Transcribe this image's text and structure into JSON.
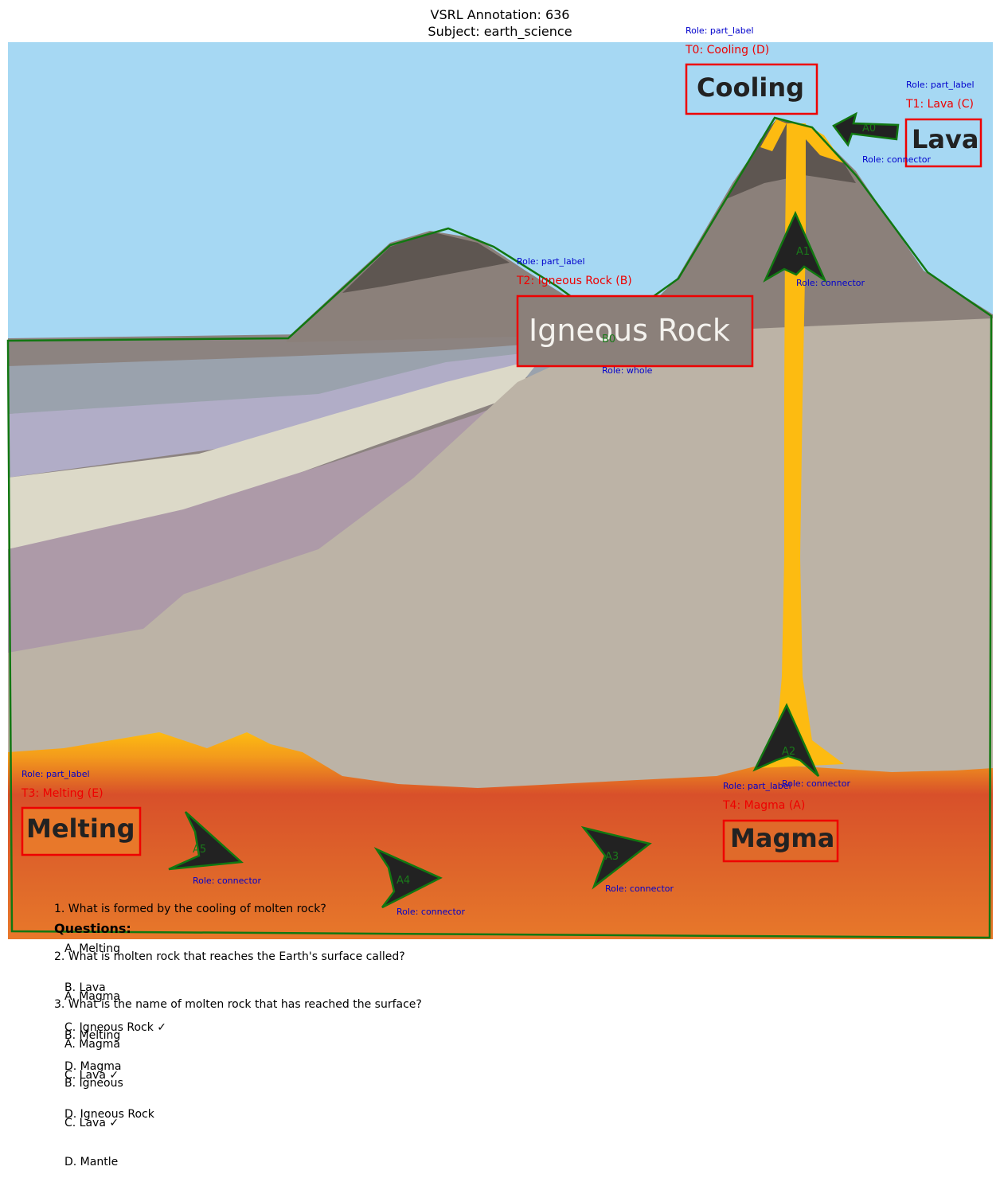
{
  "header": {
    "line1": "VSRL Annotation: 636",
    "line2": "Subject: earth_science"
  },
  "text_boxes": [
    {
      "id": "T0",
      "tag": "T0: Cooling (D)",
      "role": "Role: part_label",
      "text": "Cooling"
    },
    {
      "id": "T1",
      "tag": "T1: Lava (C)",
      "role": "Role: part_label",
      "text": "Lava"
    },
    {
      "id": "T2",
      "tag": "T2: Igneous Rock (B)",
      "role": "Role: part_label",
      "text": "Igneous Rock"
    },
    {
      "id": "T3",
      "tag": "T3: Melting (E)",
      "role": "Role: part_label",
      "text": "Melting"
    },
    {
      "id": "T4",
      "tag": "T4: Magma (A)",
      "role": "Role: part_label",
      "text": "Magma"
    }
  ],
  "arrows": [
    {
      "id": "A0",
      "role": "Role: connector"
    },
    {
      "id": "A1",
      "role": "Role: connector"
    },
    {
      "id": "A2",
      "role": "Role: connector"
    },
    {
      "id": "A3",
      "role": "Role: connector"
    },
    {
      "id": "A4",
      "role": "Role: connector"
    },
    {
      "id": "A5",
      "role": "Role: connector"
    }
  ],
  "blob": {
    "id": "B0",
    "role": "Role: whole"
  },
  "questions_heading": "Questions:",
  "questions": [
    {
      "q": "1. What is formed by the cooling of molten rock?",
      "options": [
        "A. Melting",
        "B. Lava",
        "C. Igneous Rock ✓",
        "D. Magma"
      ]
    },
    {
      "q": "2. What is molten rock that reaches the Earth's surface called?",
      "options": [
        "A. Magma",
        "B. Melting",
        "C. Lava ✓",
        "D. Igneous Rock"
      ]
    },
    {
      "q": "3. What is the name of molten rock that has reached the surface?",
      "options": [
        "A. Magma",
        "B. Igneous",
        "C. Lava ✓",
        "D. Mantle"
      ]
    }
  ],
  "colors": {
    "sky": "#a6d8f3",
    "magma_yellow": "#fdbb11",
    "mantle_red": "#d8502a",
    "mantle_orange": "#e8702a",
    "rock_tan": "#bcb3a6",
    "rock_dark": "#5e5651",
    "annotation_box": "#ee0000",
    "polygon_outline": "#117711",
    "role_text": "#0000cc"
  }
}
